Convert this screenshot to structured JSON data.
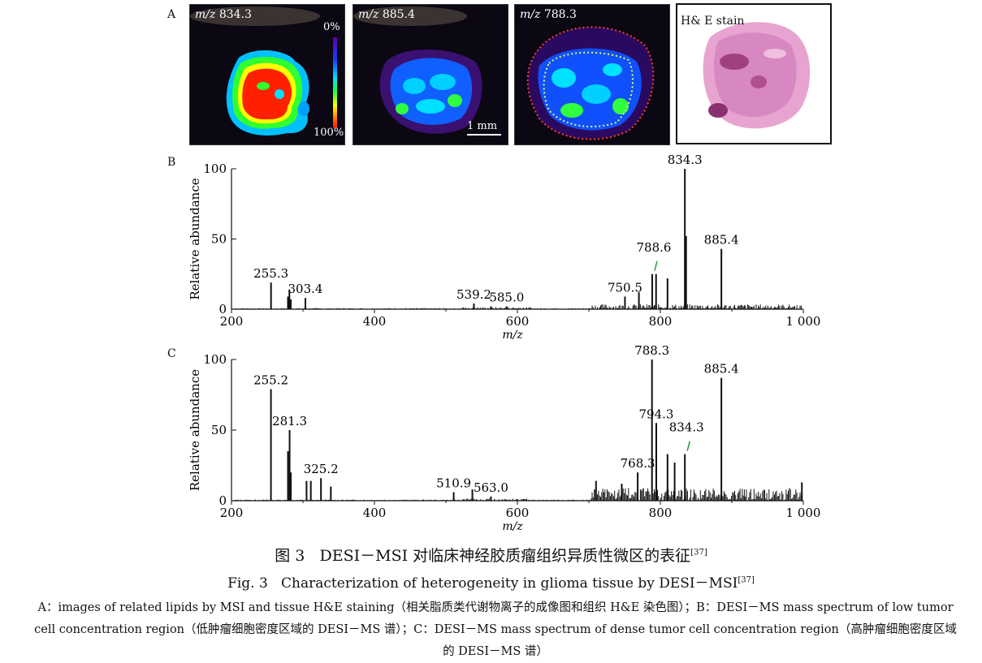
{
  "panel_a": {
    "letter": "A",
    "images": [
      {
        "prefix": "m/z",
        "value": "834.3"
      },
      {
        "prefix": "m/z",
        "value": "885.4"
      },
      {
        "prefix": "m/z",
        "value": "788.3"
      }
    ],
    "colorbar_top": "0%",
    "colorbar_bottom": "100%",
    "scale_bar": "1 mm",
    "he_title": "H& E stain"
  },
  "panel_b": {
    "letter": "B",
    "ylabel": "Relative abundance",
    "xlabel": "m/z"
  },
  "panel_c": {
    "letter": "C",
    "ylabel": "Relative abundance",
    "xlabel": "m/z"
  },
  "chart_data": [
    {
      "type": "line",
      "panel": "B",
      "xlim": [
        200,
        1000
      ],
      "ylim": [
        0,
        100
      ],
      "x_ticks": [
        "200",
        "400",
        "600",
        "800",
        "1 000"
      ],
      "y_ticks": [
        "0",
        "50",
        "100"
      ],
      "peaks": [
        {
          "x": 255.3,
          "y": 19
        },
        {
          "x": 279,
          "y": 9
        },
        {
          "x": 281,
          "y": 14
        },
        {
          "x": 283,
          "y": 7
        },
        {
          "x": 303.4,
          "y": 8
        },
        {
          "x": 539.2,
          "y": 4
        },
        {
          "x": 585.0,
          "y": 2
        },
        {
          "x": 563,
          "y": 2
        },
        {
          "x": 750.5,
          "y": 9
        },
        {
          "x": 770,
          "y": 12
        },
        {
          "x": 788.6,
          "y": 25
        },
        {
          "x": 794,
          "y": 25
        },
        {
          "x": 810,
          "y": 22
        },
        {
          "x": 834.3,
          "y": 100
        },
        {
          "x": 836,
          "y": 52
        },
        {
          "x": 885.4,
          "y": 43
        }
      ],
      "annotations": [
        {
          "x": 255.3,
          "y": 19,
          "label": "255.3"
        },
        {
          "x": 303.4,
          "y": 8,
          "label": "303.4"
        },
        {
          "x": 539.2,
          "y": 4,
          "label": "539.2"
        },
        {
          "x": 585.0,
          "y": 2,
          "label": "585.0"
        },
        {
          "x": 750.5,
          "y": 9,
          "label": "750.5"
        },
        {
          "x": 788.6,
          "y": 25,
          "label": "788.6"
        },
        {
          "x": 834.3,
          "y": 100,
          "label": "834.3"
        },
        {
          "x": 885.4,
          "y": 43,
          "label": "885.4"
        }
      ]
    },
    {
      "type": "line",
      "panel": "C",
      "xlim": [
        200,
        1000
      ],
      "ylim": [
        0,
        100
      ],
      "x_ticks": [
        "200",
        "400",
        "600",
        "800",
        "1 000"
      ],
      "y_ticks": [
        "0",
        "50",
        "100"
      ],
      "peaks": [
        {
          "x": 255.2,
          "y": 79
        },
        {
          "x": 279,
          "y": 35
        },
        {
          "x": 281.3,
          "y": 50
        },
        {
          "x": 283,
          "y": 20
        },
        {
          "x": 305,
          "y": 14
        },
        {
          "x": 311,
          "y": 14
        },
        {
          "x": 325.2,
          "y": 16
        },
        {
          "x": 339,
          "y": 10
        },
        {
          "x": 510.9,
          "y": 6
        },
        {
          "x": 537,
          "y": 8
        },
        {
          "x": 563.0,
          "y": 3
        },
        {
          "x": 710,
          "y": 14
        },
        {
          "x": 746,
          "y": 12
        },
        {
          "x": 768.3,
          "y": 20
        },
        {
          "x": 788.3,
          "y": 100
        },
        {
          "x": 794.3,
          "y": 55
        },
        {
          "x": 810,
          "y": 33
        },
        {
          "x": 820,
          "y": 27
        },
        {
          "x": 834.3,
          "y": 33
        },
        {
          "x": 885.4,
          "y": 87
        },
        {
          "x": 998,
          "y": 13
        }
      ],
      "annotations": [
        {
          "x": 255.2,
          "y": 79,
          "label": "255.2"
        },
        {
          "x": 281.3,
          "y": 50,
          "label": "281.3"
        },
        {
          "x": 325.2,
          "y": 16,
          "label": "325.2"
        },
        {
          "x": 510.9,
          "y": 6,
          "label": "510.9"
        },
        {
          "x": 563.0,
          "y": 3,
          "label": "563.0"
        },
        {
          "x": 768.3,
          "y": 20,
          "label": "768.3"
        },
        {
          "x": 788.3,
          "y": 100,
          "label": "788.3"
        },
        {
          "x": 794.3,
          "y": 55,
          "label": "794.3"
        },
        {
          "x": 834.3,
          "y": 33,
          "label": "834.3"
        },
        {
          "x": 885.4,
          "y": 87,
          "label": "885.4"
        }
      ]
    }
  ],
  "caption": {
    "cn_prefix": "图 3",
    "cn_title": "DESI－MSI 对临床神经胶质瘤组织异质性微区的表征",
    "ref": "[37]",
    "en_prefix": "Fig. 3",
    "en_title": "Characterization of heterogeneity in glioma tissue by DESI－MSI",
    "note": "A：images of related lipids by MSI and tissue H&E staining（相关脂质类代谢物离子的成像图和组织 H&E 染色图）；B：DESI－MS mass spectrum of low tumor cell concentration region（低肿瘤细胞密度区域的 DESI－MS 谱）；C：DESI－MS mass spectrum of dense tumor cell concentration region（高肿瘤细胞密度区域的 DESI－MS 谱）"
  }
}
